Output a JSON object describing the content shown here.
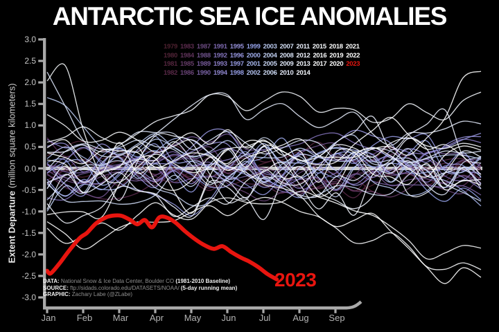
{
  "chart_data": {
    "type": "line",
    "title": "ANTARCTIC SEA ICE ANOMALIES",
    "ylabel_bold": "Extent Departure",
    "ylabel_rest": " (million square kilometers)",
    "ylim": [
      -3.0,
      3.0
    ],
    "y_tick_labels": [
      "3.0",
      "2.5",
      "2.0",
      "1.5",
      "1.0",
      "0.5",
      "0.0",
      "-0.5",
      "-1.0",
      "-1.5",
      "-2.0",
      "-2.5",
      "-3.0"
    ],
    "x_tick_labels": [
      "Jan",
      "Feb",
      "Mar",
      "Apr",
      "May",
      "Jun",
      "Jul",
      "Aug",
      "Sep"
    ],
    "x_range_months": [
      0,
      12
    ],
    "zero_line_value": 0.0,
    "highlight_series": {
      "name": "2023",
      "color": "#e8150f",
      "units": "million sq km anomaly vs 1981-2010",
      "points_month_value": [
        [
          0.0,
          -2.38
        ],
        [
          0.1,
          -2.44
        ],
        [
          0.35,
          -2.2
        ],
        [
          0.6,
          -1.92
        ],
        [
          0.9,
          -1.62
        ],
        [
          1.1,
          -1.5
        ],
        [
          1.35,
          -1.28
        ],
        [
          1.6,
          -1.15
        ],
        [
          1.8,
          -1.1
        ],
        [
          2.05,
          -1.1
        ],
        [
          2.3,
          -1.2
        ],
        [
          2.5,
          -1.3
        ],
        [
          2.7,
          -1.2
        ],
        [
          2.9,
          -1.37
        ],
        [
          3.1,
          -1.14
        ],
        [
          3.3,
          -1.14
        ],
        [
          3.55,
          -1.26
        ],
        [
          3.8,
          -1.45
        ],
        [
          4.05,
          -1.62
        ],
        [
          4.3,
          -1.76
        ],
        [
          4.6,
          -1.87
        ],
        [
          4.85,
          -1.81
        ],
        [
          5.1,
          -1.95
        ],
        [
          5.35,
          -2.07
        ],
        [
          5.6,
          -2.17
        ],
        [
          5.85,
          -2.3
        ],
        [
          6.1,
          -2.46
        ],
        [
          6.35,
          -2.58
        ]
      ]
    },
    "background": {
      "years": [
        1979,
        1980,
        1981,
        1982,
        1983,
        1984,
        1985,
        1986,
        1987,
        1988,
        1989,
        1990,
        1991,
        1992,
        1993,
        1994,
        1995,
        1996,
        1997,
        1998,
        1999,
        2000,
        2001,
        2002,
        2003,
        2004,
        2005,
        2006,
        2007,
        2008,
        2009,
        2010,
        2011,
        2012,
        2013,
        2014,
        2015,
        2016,
        2017,
        2018,
        2019,
        2020,
        2021,
        2022
      ],
      "color_stops": [
        [
          1979,
          "#4e2130"
        ],
        [
          1983,
          "#5c2b4e"
        ],
        [
          1987,
          "#6b4a80"
        ],
        [
          1991,
          "#7c68ae"
        ],
        [
          1995,
          "#9590d8"
        ],
        [
          1999,
          "#93a0e6"
        ],
        [
          2003,
          "#b9c9ef"
        ],
        [
          2007,
          "#d4dff5"
        ],
        [
          2011,
          "#e9eefb"
        ],
        [
          2015,
          "#f7fafd"
        ],
        [
          2018,
          "#ffffff"
        ],
        [
          2022,
          "#ffffff"
        ]
      ],
      "overrides_month_value": {
        "2015": [
          [
            0,
            2.1
          ],
          [
            0.3,
            2.6
          ],
          [
            0.6,
            2.3
          ],
          [
            1,
            0.9
          ],
          [
            1.5,
            -0.1
          ],
          [
            2,
            -0.4
          ],
          [
            2.5,
            0.1
          ],
          [
            3,
            0.3
          ],
          [
            4,
            -0.2
          ],
          [
            5,
            0.4
          ],
          [
            6,
            0.6
          ],
          [
            7,
            0.2
          ],
          [
            8,
            0.5
          ],
          [
            9,
            0.3
          ],
          [
            10,
            0.7
          ],
          [
            11,
            0.4
          ],
          [
            12,
            0.6
          ]
        ],
        "2008": [
          [
            0,
            2.15
          ],
          [
            0.4,
            1.7
          ],
          [
            0.8,
            1.0
          ],
          [
            1.2,
            0.4
          ],
          [
            2,
            0.6
          ],
          [
            3,
            0.9
          ],
          [
            4,
            0.5
          ],
          [
            5,
            0.8
          ],
          [
            6,
            0.4
          ],
          [
            7,
            0.7
          ],
          [
            8,
            0.3
          ],
          [
            9,
            0.5
          ],
          [
            10,
            0.2
          ],
          [
            11,
            0.5
          ],
          [
            12,
            0.3
          ]
        ],
        "2016": [
          [
            0,
            1.2
          ],
          [
            1,
            0.6
          ],
          [
            2,
            0.8
          ],
          [
            3,
            0.3
          ],
          [
            4,
            0.6
          ],
          [
            5,
            0.1
          ],
          [
            6,
            -0.3
          ],
          [
            7,
            -0.6
          ],
          [
            8,
            -1.4
          ],
          [
            8.7,
            -1.9
          ],
          [
            9.3,
            -1.5
          ],
          [
            10,
            -1.8
          ],
          [
            10.8,
            -2.55
          ],
          [
            11.3,
            -2.1
          ],
          [
            12,
            -2.3
          ]
        ],
        "2017": [
          [
            0,
            -1.3
          ],
          [
            0.5,
            -1.65
          ],
          [
            1,
            -1.5
          ],
          [
            1.5,
            -1.2
          ],
          [
            2,
            -1.35
          ],
          [
            3,
            -0.9
          ],
          [
            4,
            -1.1
          ],
          [
            5,
            -0.7
          ],
          [
            6,
            -0.9
          ],
          [
            7,
            -0.5
          ],
          [
            8,
            -0.8
          ],
          [
            9,
            -1.2
          ],
          [
            10,
            -1.6
          ],
          [
            10.7,
            -2.2
          ],
          [
            11.3,
            -1.8
          ],
          [
            12,
            -1.95
          ]
        ],
        "2022": [
          [
            0,
            -1.2
          ],
          [
            0.7,
            -1.75
          ],
          [
            1.3,
            -1.9
          ],
          [
            2,
            -1.4
          ],
          [
            2.7,
            -1.1
          ],
          [
            3.5,
            -1.25
          ],
          [
            4.2,
            -0.8
          ],
          [
            5,
            -1.0
          ],
          [
            6,
            -0.6
          ],
          [
            7,
            -0.9
          ],
          [
            8,
            -1.3
          ],
          [
            9,
            -1.0
          ],
          [
            9.7,
            -1.5
          ],
          [
            10.3,
            -2.2
          ],
          [
            11,
            -2.6
          ],
          [
            11.5,
            -2.3
          ],
          [
            12,
            -2.45
          ]
        ],
        "2020": [
          [
            0,
            0.4
          ],
          [
            1,
            0.2
          ],
          [
            2,
            0.5
          ],
          [
            3,
            0.1
          ],
          [
            4,
            0.4
          ],
          [
            5,
            0.0
          ],
          [
            6,
            0.3
          ],
          [
            7,
            0.6
          ],
          [
            8,
            0.2
          ],
          [
            9,
            0.5
          ],
          [
            10,
            0.3
          ],
          [
            10.8,
            0.8
          ],
          [
            11.4,
            1.9
          ],
          [
            11.8,
            2.5
          ],
          [
            12,
            2.35
          ]
        ],
        "2014": [
          [
            0,
            0.6
          ],
          [
            1,
            0.9
          ],
          [
            2,
            0.6
          ],
          [
            3,
            1.0
          ],
          [
            4,
            1.3
          ],
          [
            4.7,
            1.8
          ],
          [
            5.4,
            1.3
          ],
          [
            6,
            1.5
          ],
          [
            6.8,
            1.9
          ],
          [
            7.5,
            1.3
          ],
          [
            8.3,
            1.6
          ],
          [
            9,
            1.1
          ],
          [
            10,
            1.4
          ],
          [
            11,
            1.1
          ],
          [
            11.7,
            1.85
          ],
          [
            12,
            1.7
          ]
        ],
        "2010": [
          [
            0,
            0.3
          ],
          [
            1,
            0.5
          ],
          [
            2,
            0.2
          ],
          [
            3,
            0.8
          ],
          [
            4,
            1.5
          ],
          [
            4.7,
            1.85
          ],
          [
            5.5,
            1.2
          ],
          [
            6.5,
            1.6
          ],
          [
            7.5,
            0.9
          ],
          [
            8.5,
            1.2
          ],
          [
            9.5,
            0.6
          ],
          [
            10.5,
            0.9
          ],
          [
            12,
            1.1
          ]
        ],
        "2003": [
          [
            0,
            1.55
          ],
          [
            0.3,
            1.65
          ],
          [
            0.7,
            1.2
          ],
          [
            1.2,
            0.7
          ],
          [
            2,
            0.4
          ],
          [
            3,
            0.7
          ],
          [
            4,
            0.3
          ],
          [
            5,
            0.6
          ],
          [
            6,
            0.2
          ],
          [
            7,
            0.5
          ],
          [
            8,
            0.2
          ],
          [
            9,
            0.4
          ],
          [
            10,
            0.1
          ],
          [
            11,
            0.4
          ],
          [
            12,
            0.2
          ]
        ]
      }
    },
    "axis_color": "#a9a9a9",
    "zero_line_color": "#c8c8c8"
  },
  "legend": {
    "rows": [
      [
        "1979",
        "1983",
        "1987",
        "1991",
        "1995",
        "1999",
        "2003",
        "2007",
        "2011",
        "2015",
        "2018",
        "2021"
      ],
      [
        "1980",
        "1984",
        "1988",
        "1992",
        "1996",
        "2000",
        "2004",
        "2008",
        "2012",
        "2016",
        "2019",
        "2022"
      ],
      [
        "1981",
        "1985",
        "1989",
        "1993",
        "1997",
        "2001",
        "2005",
        "2009",
        "2013",
        "2017",
        "2020",
        "2023"
      ],
      [
        "1982",
        "1986",
        "1990",
        "1994",
        "1998",
        "2002",
        "2006",
        "2010",
        "2014"
      ]
    ]
  },
  "credits": {
    "data_label": "DATA:",
    "data_text": " National Snow & Ice Data Center, Boulder CO ",
    "data_strong": "(1981-2010 Baseline)",
    "source_label": "SOURCE:",
    "source_text": " ftp://sidads.colorado.edu/DATASETS/NOAA/ ",
    "source_strong": "(5-day running mean)",
    "graphic_label": "GRAPHIC:",
    "graphic_text": " Zachary Labe (@ZLabe)"
  }
}
